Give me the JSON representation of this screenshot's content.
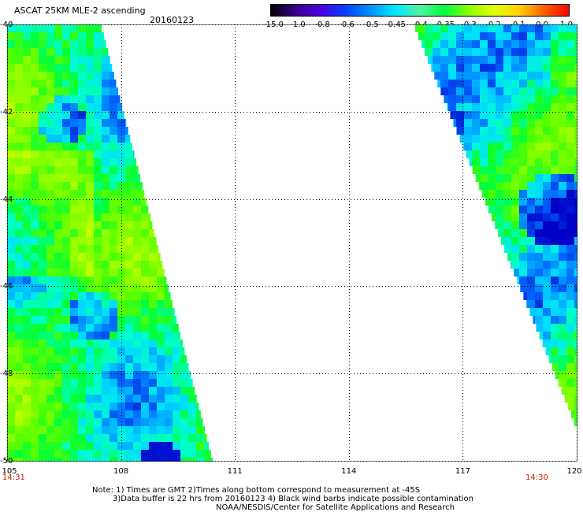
{
  "title": "ASCAT 25KM MLE-2 ascending",
  "date": "20160123",
  "colorbar": {
    "labels": [
      "-15.0",
      "-1.0",
      "-0.8",
      "-0.6",
      "-0.5",
      "-0.45",
      "-0.4",
      "-0.35",
      "-0.3",
      "-0.2",
      "-0.1",
      "0.0",
      "1.0"
    ],
    "colors": [
      "#000000",
      "#3a0090",
      "#5000e0",
      "#0040ff",
      "#0090ff",
      "#00e8ff",
      "#50f0a0",
      "#00ff40",
      "#90ff00",
      "#e0ff00",
      "#ffd000",
      "#ff6000",
      "#ff0000"
    ]
  },
  "map": {
    "latitudes": [
      "-40",
      "-42",
      "-44",
      "-46",
      "-48",
      "-50"
    ],
    "longitudes": [
      "105",
      "108",
      "111",
      "114",
      "117",
      "120"
    ],
    "time_left": "14:31",
    "time_right": "14:30"
  },
  "notes": {
    "line1": "Note: 1) Times are GMT 2)Times along bottom correspond to measurement at -45S",
    "line2": "3)Data buffer is 22 hrs from 20160123 4) Black wind barbs indicate possible contamination",
    "line3": "NOAA/NESDIS/Center for Satellite Applications and Research"
  }
}
